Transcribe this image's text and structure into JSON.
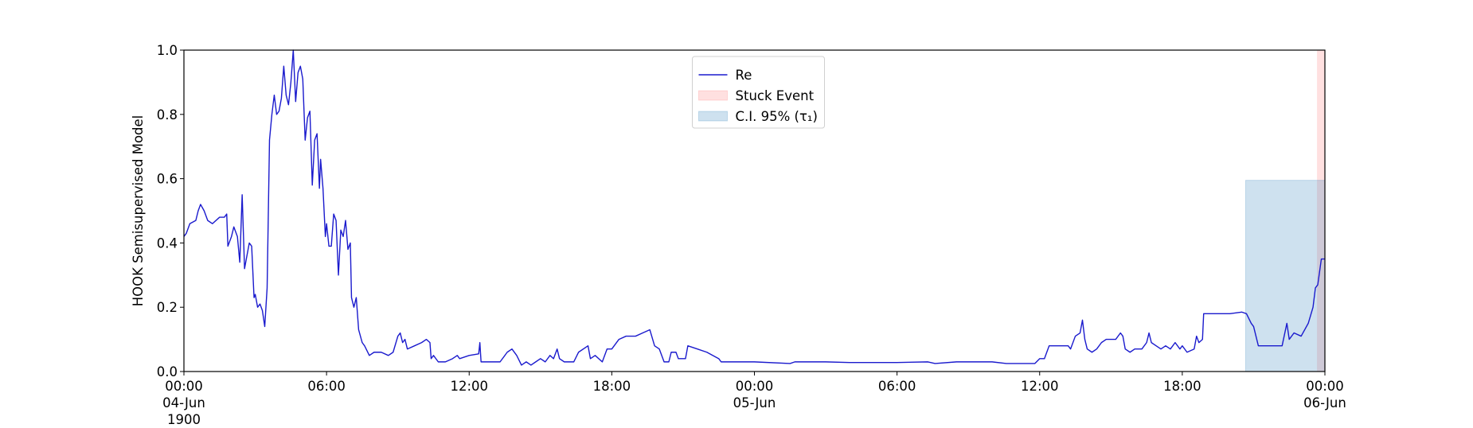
{
  "chart_data": {
    "type": "line",
    "y_label": "HOOK Semisupervised Model",
    "ylim": [
      0,
      1
    ],
    "yticks": [
      {
        "value": 0,
        "label": "0.0"
      },
      0.2,
      0.4,
      0.6,
      0.8,
      {
        "value": 1,
        "label": "1.0"
      }
    ],
    "xlim": [
      "1900-06-04T00:00",
      "1900-06-06T00:00"
    ],
    "xticks": [
      {
        "value": "1900-06-04T00:00",
        "label": "00:00\n04-Jun\n1900"
      },
      {
        "value": "1900-06-04T06:00",
        "label": "06:00"
      },
      {
        "value": "1900-06-04T12:00",
        "label": "12:00"
      },
      {
        "value": "1900-06-04T18:00",
        "label": "18:00"
      },
      {
        "value": "1900-06-05T00:00",
        "label": "00:00\n05-Jun"
      },
      {
        "value": "1900-06-05T06:00",
        "label": "06:00"
      },
      {
        "value": "1900-06-05T12:00",
        "label": "12:00"
      },
      {
        "value": "1900-06-05T18:00",
        "label": "18:00"
      },
      {
        "value": "1900-06-06T00:00",
        "label": "00:00\n06-Jun"
      }
    ],
    "legend": "upper center",
    "x": [
      "1900-06-04T00:00",
      "1900-06-04T00:06",
      "1900-06-04T00:15",
      "1900-06-04T00:30",
      "1900-06-04T00:36",
      "1900-06-04T00:42",
      "1900-06-04T00:51",
      "1900-06-04T01:00",
      "1900-06-04T01:12",
      "1900-06-04T01:30",
      "1900-06-04T01:42",
      "1900-06-04T01:48",
      "1900-06-04T01:51",
      "1900-06-04T02:00",
      "1900-06-04T02:06",
      "1900-06-04T02:15",
      "1900-06-04T02:21",
      "1900-06-04T02:27",
      "1900-06-04T02:33",
      "1900-06-04T02:39",
      "1900-06-04T02:45",
      "1900-06-04T02:51",
      "1900-06-04T02:57",
      "1900-06-04T03:00",
      "1900-06-04T03:06",
      "1900-06-04T03:12",
      "1900-06-04T03:18",
      "1900-06-04T03:24",
      "1900-06-04T03:30",
      "1900-06-04T03:36",
      "1900-06-04T03:42",
      "1900-06-04T03:48",
      "1900-06-04T03:54",
      "1900-06-04T04:00",
      "1900-06-04T04:06",
      "1900-06-04T04:12",
      "1900-06-04T04:18",
      "1900-06-04T04:24",
      "1900-06-04T04:30",
      "1900-06-04T04:36",
      "1900-06-04T04:42",
      "1900-06-04T04:48",
      "1900-06-04T04:54",
      "1900-06-04T05:00",
      "1900-06-04T05:06",
      "1900-06-04T05:12",
      "1900-06-04T05:18",
      "1900-06-04T05:24",
      "1900-06-04T05:30",
      "1900-06-04T05:36",
      "1900-06-04T05:42",
      "1900-06-04T05:45",
      "1900-06-04T05:51",
      "1900-06-04T05:57",
      "1900-06-04T06:00",
      "1900-06-04T06:06",
      "1900-06-04T06:12",
      "1900-06-04T06:18",
      "1900-06-04T06:24",
      "1900-06-04T06:30",
      "1900-06-04T06:36",
      "1900-06-04T06:42",
      "1900-06-04T06:48",
      "1900-06-04T06:54",
      "1900-06-04T07:00",
      "1900-06-04T07:03",
      "1900-06-04T07:09",
      "1900-06-04T07:15",
      "1900-06-04T07:21",
      "1900-06-04T07:30",
      "1900-06-04T07:36",
      "1900-06-04T07:48",
      "1900-06-04T08:00",
      "1900-06-04T08:18",
      "1900-06-04T08:36",
      "1900-06-04T08:48",
      "1900-06-04T09:00",
      "1900-06-04T09:06",
      "1900-06-04T09:12",
      "1900-06-04T09:18",
      "1900-06-04T09:24",
      "1900-06-04T09:42",
      "1900-06-04T10:00",
      "1900-06-04T10:12",
      "1900-06-04T10:21",
      "1900-06-04T10:24",
      "1900-06-04T10:30",
      "1900-06-04T10:42",
      "1900-06-04T11:00",
      "1900-06-04T11:18",
      "1900-06-04T11:30",
      "1900-06-04T11:36",
      "1900-06-04T12:00",
      "1900-06-04T12:24",
      "1900-06-04T12:27",
      "1900-06-04T12:30",
      "1900-06-04T12:42",
      "1900-06-04T13:00",
      "1900-06-04T13:18",
      "1900-06-04T13:36",
      "1900-06-04T13:48",
      "1900-06-04T14:00",
      "1900-06-04T14:12",
      "1900-06-04T14:24",
      "1900-06-04T14:36",
      "1900-06-04T14:48",
      "1900-06-04T15:00",
      "1900-06-04T15:12",
      "1900-06-04T15:24",
      "1900-06-04T15:33",
      "1900-06-04T15:42",
      "1900-06-04T15:48",
      "1900-06-04T16:00",
      "1900-06-04T16:24",
      "1900-06-04T16:36",
      "1900-06-04T17:00",
      "1900-06-04T17:06",
      "1900-06-04T17:18",
      "1900-06-04T17:36",
      "1900-06-04T17:48",
      "1900-06-04T18:00",
      "1900-06-04T18:18",
      "1900-06-04T18:36",
      "1900-06-04T19:00",
      "1900-06-04T19:18",
      "1900-06-04T19:36",
      "1900-06-04T19:48",
      "1900-06-04T20:00",
      "1900-06-04T20:12",
      "1900-06-04T20:24",
      "1900-06-04T20:30",
      "1900-06-04T20:42",
      "1900-06-04T20:48",
      "1900-06-04T21:06",
      "1900-06-04T21:12",
      "1900-06-04T21:36",
      "1900-06-04T22:00",
      "1900-06-04T22:30",
      "1900-06-04T22:36",
      "1900-06-04T23:00",
      "1900-06-05T00:00",
      "1900-06-05T01:30",
      "1900-06-05T01:42",
      "1900-06-05T03:00",
      "1900-06-05T04:00",
      "1900-06-05T06:00",
      "1900-06-05T07:18",
      "1900-06-05T07:36",
      "1900-06-05T08:30",
      "1900-06-05T10:00",
      "1900-06-05T10:36",
      "1900-06-05T11:48",
      "1900-06-05T12:00",
      "1900-06-05T12:12",
      "1900-06-05T12:24",
      "1900-06-05T13:12",
      "1900-06-05T13:18",
      "1900-06-05T13:30",
      "1900-06-05T13:42",
      "1900-06-05T13:48",
      "1900-06-05T13:54",
      "1900-06-05T14:00",
      "1900-06-05T14:12",
      "1900-06-05T14:24",
      "1900-06-05T14:36",
      "1900-06-05T14:48",
      "1900-06-05T15:12",
      "1900-06-05T15:24",
      "1900-06-05T15:30",
      "1900-06-05T15:36",
      "1900-06-05T15:48",
      "1900-06-05T16:00",
      "1900-06-05T16:18",
      "1900-06-05T16:30",
      "1900-06-05T16:36",
      "1900-06-05T16:42",
      "1900-06-05T16:54",
      "1900-06-05T17:06",
      "1900-06-05T17:18",
      "1900-06-05T17:30",
      "1900-06-05T17:42",
      "1900-06-05T17:54",
      "1900-06-05T18:00",
      "1900-06-05T18:12",
      "1900-06-05T18:30",
      "1900-06-05T18:36",
      "1900-06-05T18:42",
      "1900-06-05T18:51",
      "1900-06-05T18:54",
      "1900-06-05T19:30",
      "1900-06-05T20:00",
      "1900-06-05T20:30",
      "1900-06-05T20:42",
      "1900-06-05T20:54",
      "1900-06-05T21:00",
      "1900-06-05T21:12",
      "1900-06-05T22:12",
      "1900-06-05T22:24",
      "1900-06-05T22:30",
      "1900-06-05T22:42",
      "1900-06-05T23:00",
      "1900-06-05T23:18",
      "1900-06-05T23:30",
      "1900-06-05T23:36",
      "1900-06-05T23:42",
      "1900-06-05T23:51",
      "1900-06-06T00:00"
    ],
    "series": [
      {
        "name": "Re",
        "color": "#1a1acd",
        "values": [
          0.42,
          0.43,
          0.46,
          0.47,
          0.5,
          0.52,
          0.5,
          0.47,
          0.46,
          0.48,
          0.48,
          0.49,
          0.39,
          0.42,
          0.45,
          0.42,
          0.34,
          0.55,
          0.32,
          0.36,
          0.4,
          0.39,
          0.23,
          0.24,
          0.2,
          0.21,
          0.19,
          0.14,
          0.26,
          0.72,
          0.8,
          0.86,
          0.8,
          0.81,
          0.85,
          0.95,
          0.86,
          0.83,
          0.9,
          1.0,
          0.84,
          0.93,
          0.95,
          0.91,
          0.72,
          0.79,
          0.81,
          0.58,
          0.72,
          0.74,
          0.57,
          0.66,
          0.57,
          0.42,
          0.46,
          0.39,
          0.39,
          0.49,
          0.47,
          0.3,
          0.44,
          0.42,
          0.47,
          0.38,
          0.4,
          0.23,
          0.2,
          0.23,
          0.13,
          0.09,
          0.08,
          0.05,
          0.06,
          0.06,
          0.05,
          0.06,
          0.11,
          0.12,
          0.09,
          0.1,
          0.07,
          0.08,
          0.09,
          0.1,
          0.09,
          0.04,
          0.05,
          0.03,
          0.03,
          0.04,
          0.05,
          0.04,
          0.05,
          0.055,
          0.09,
          0.03,
          0.03,
          0.03,
          0.03,
          0.06,
          0.07,
          0.05,
          0.02,
          0.03,
          0.02,
          0.03,
          0.04,
          0.03,
          0.05,
          0.04,
          0.07,
          0.04,
          0.03,
          0.03,
          0.06,
          0.08,
          0.04,
          0.05,
          0.03,
          0.07,
          0.07,
          0.1,
          0.11,
          0.11,
          0.12,
          0.13,
          0.08,
          0.07,
          0.03,
          0.03,
          0.06,
          0.06,
          0.04,
          0.04,
          0.08,
          0.07,
          0.06,
          0.04,
          0.03,
          0.03,
          0.03,
          0.025,
          0.03,
          0.03,
          0.028,
          0.028,
          0.03,
          0.025,
          0.03,
          0.03,
          0.025,
          0.025,
          0.04,
          0.04,
          0.08,
          0.08,
          0.07,
          0.11,
          0.12,
          0.16,
          0.1,
          0.07,
          0.06,
          0.07,
          0.09,
          0.1,
          0.1,
          0.12,
          0.11,
          0.07,
          0.06,
          0.07,
          0.07,
          0.09,
          0.12,
          0.09,
          0.08,
          0.07,
          0.08,
          0.07,
          0.09,
          0.07,
          0.08,
          0.06,
          0.07,
          0.11,
          0.09,
          0.1,
          0.18,
          0.18,
          0.18,
          0.185,
          0.18,
          0.15,
          0.14,
          0.08,
          0.08,
          0.15,
          0.1,
          0.12,
          0.11,
          0.15,
          0.2,
          0.26,
          0.27,
          0.35,
          0.35
        ]
      }
    ],
    "bands": [
      {
        "name": "Stuck Event",
        "color": "#ff0000",
        "alpha": 0.12,
        "x": [
          "1900-06-05T23:40",
          "1900-06-06T00:00"
        ]
      },
      {
        "name": "C.I. 95% (τ₁)",
        "color": "#1f77b4",
        "alpha": 0.22,
        "x": [
          "1900-06-05T20:40",
          "1900-06-06T00:00"
        ],
        "y": [
          0,
          0.595
        ]
      }
    ]
  }
}
